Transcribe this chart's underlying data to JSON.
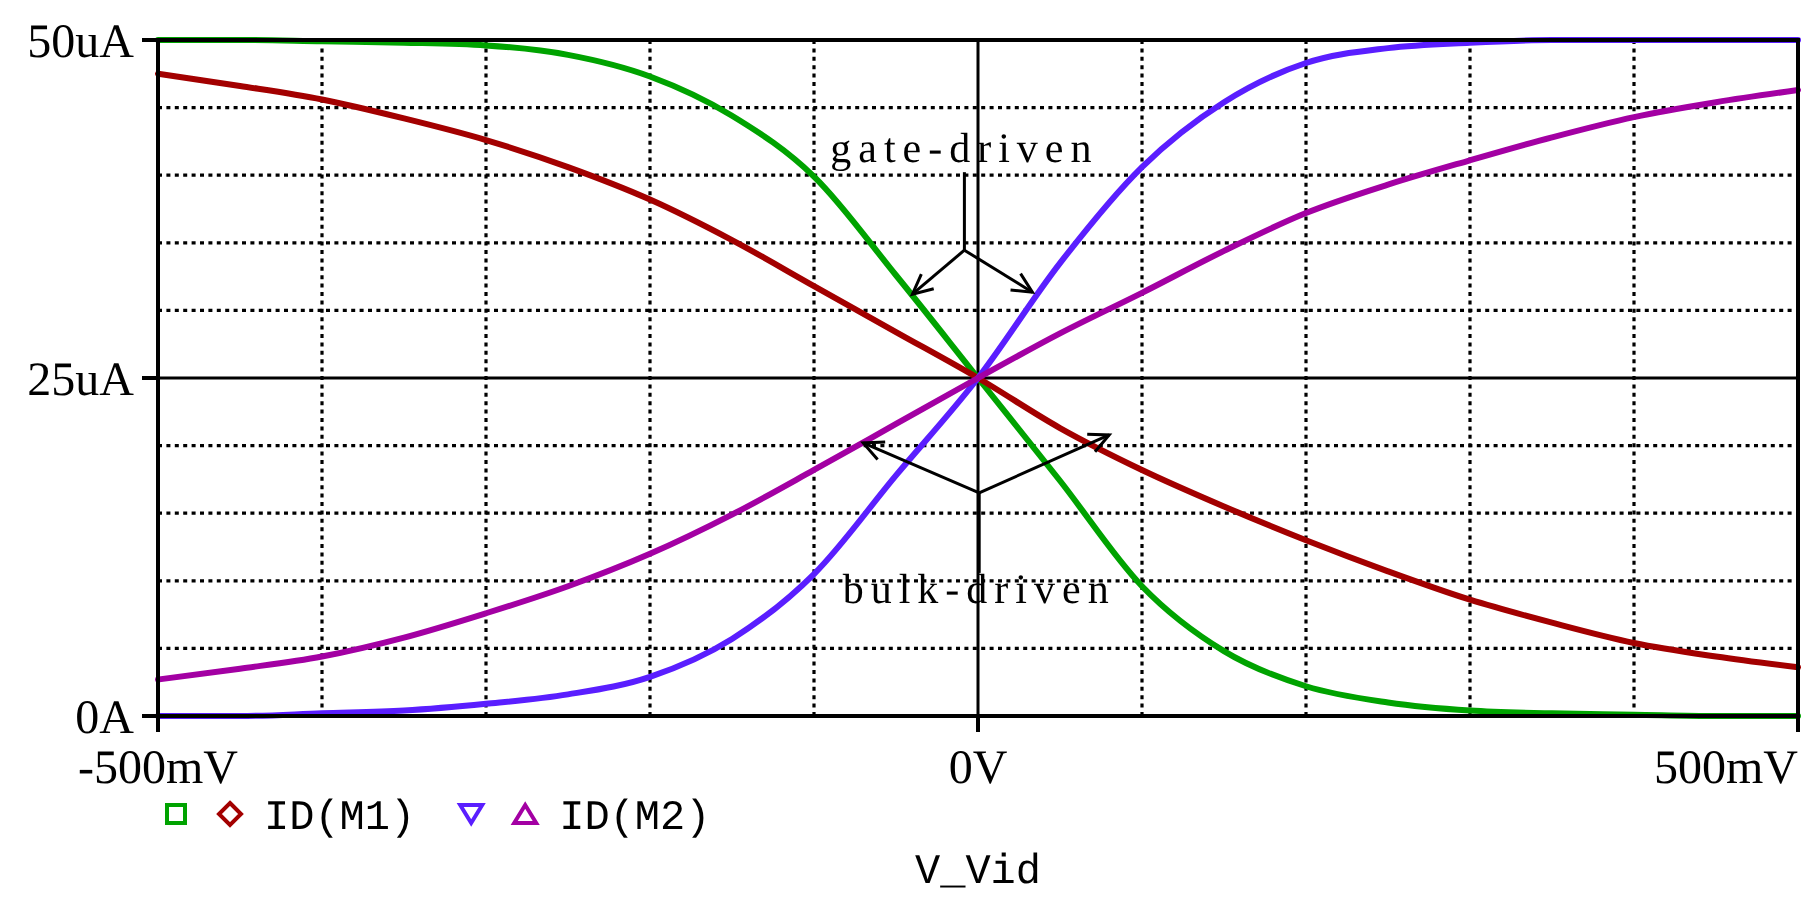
{
  "chart_data": {
    "type": "line",
    "xlabel": "V_Vid",
    "x": [
      -500,
      -450,
      -400,
      -350,
      -300,
      -250,
      -200,
      -150,
      -100,
      -50,
      0,
      50,
      100,
      150,
      200,
      250,
      300,
      350,
      400,
      450,
      500
    ],
    "xlim": [
      -500,
      500
    ],
    "xticks": [
      {
        "value": -500,
        "label": "-500mV"
      },
      {
        "value": -400,
        "label": null
      },
      {
        "value": -300,
        "label": null
      },
      {
        "value": -200,
        "label": null
      },
      {
        "value": -100,
        "label": null
      },
      {
        "value": 0,
        "label": "0V"
      },
      {
        "value": 100,
        "label": null
      },
      {
        "value": 200,
        "label": null
      },
      {
        "value": 300,
        "label": null
      },
      {
        "value": 400,
        "label": null
      },
      {
        "value": 500,
        "label": "500mV"
      }
    ],
    "ylim": [
      0,
      50
    ],
    "yticks": [
      {
        "value": 0,
        "label": "0A"
      },
      {
        "value": 5,
        "label": null
      },
      {
        "value": 10,
        "label": null
      },
      {
        "value": 15,
        "label": null
      },
      {
        "value": 20,
        "label": null
      },
      {
        "value": 25,
        "label": "25uA"
      },
      {
        "value": 30,
        "label": null
      },
      {
        "value": 35,
        "label": null
      },
      {
        "value": 40,
        "label": null
      },
      {
        "value": 45,
        "label": null
      },
      {
        "value": 50,
        "label": "50uA"
      }
    ],
    "grid": true,
    "legend": "bottom left",
    "series": [
      {
        "color": "#00a300",
        "values": [
          50,
          50,
          49.9,
          49.8,
          49.6,
          48.9,
          47.3,
          44.4,
          39.9,
          32.6,
          25,
          17.4,
          9.6,
          4.8,
          2.2,
          1.0,
          0.4,
          0.2,
          0.1,
          0,
          0
        ]
      },
      {
        "name": "ID(M1)",
        "color": "#a30000",
        "values": [
          47.5,
          46.6,
          45.6,
          44.2,
          42.6,
          40.6,
          38.2,
          35.2,
          31.8,
          28.4,
          25,
          21.3,
          18.2,
          15.5,
          13.0,
          10.7,
          8.6,
          6.9,
          5.4,
          4.4,
          3.6
        ]
      },
      {
        "color": "#5a1eff",
        "values": [
          0,
          0,
          0.2,
          0.4,
          0.9,
          1.6,
          2.9,
          5.7,
          10.5,
          17.8,
          25,
          33.5,
          40.6,
          45.4,
          48.3,
          49.4,
          49.8,
          50,
          50,
          50,
          50
        ]
      },
      {
        "name": "ID(M2)",
        "color": "#a300a3",
        "values": [
          2.7,
          3.5,
          4.4,
          5.8,
          7.6,
          9.6,
          12.0,
          14.9,
          18.2,
          21.6,
          25,
          28.3,
          31.3,
          34.4,
          37.2,
          39.3,
          41.1,
          42.8,
          44.3,
          45.4,
          46.3
        ]
      }
    ],
    "annotations": [
      {
        "text": "gate-driven",
        "x": -40,
        "y": 31.2
      },
      {
        "text": "bulk-driven",
        "x": -70,
        "y": 20.2
      }
    ]
  }
}
